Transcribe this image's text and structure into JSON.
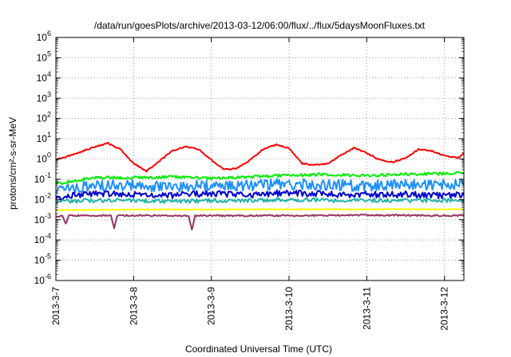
{
  "chart_data": {
    "type": "line",
    "title": "/data/run/goesPlots/archive/2013-03-12/06:00/flux/../flux/5daysMoonFluxes.txt",
    "xlabel": "Coordinated Universal Time (UTC)",
    "ylabel": "protons/cm²-s-sr-MeV",
    "yscale": "log",
    "ylim": [
      1e-06,
      1000000.0
    ],
    "xlim": [
      "2013-03-07T00:00",
      "2013-03-12T06:00"
    ],
    "x_ticks": [
      "2013-3-7",
      "2013-3-8",
      "2013-3-9",
      "2013-3-10",
      "2013-3-11",
      "2013-3-12"
    ],
    "y_ticks": [
      "10^-6",
      "10^-5",
      "10^-4",
      "10^-3",
      "10^-2",
      "10^-1",
      "10^0",
      "10^1",
      "10^2",
      "10^3",
      "10^4",
      "10^5",
      "10^6"
    ],
    "grid": true,
    "legend": "none",
    "series": [
      {
        "color": "#ff0000",
        "x": [
          "2013-03-07T00:00",
          "2013-03-07T06:00",
          "2013-03-07T12:00",
          "2013-03-07T16:00",
          "2013-03-07T20:00",
          "2013-03-08T00:00",
          "2013-03-08T04:00",
          "2013-03-08T08:00",
          "2013-03-08T12:00",
          "2013-03-08T16:00",
          "2013-03-08T20:00",
          "2013-03-09T00:00",
          "2013-03-09T04:00",
          "2013-03-09T08:00",
          "2013-03-09T12:00",
          "2013-03-09T16:00",
          "2013-03-09T20:00",
          "2013-03-10T00:00",
          "2013-03-10T04:00",
          "2013-03-10T08:00",
          "2013-03-10T12:00",
          "2013-03-10T16:00",
          "2013-03-10T20:00",
          "2013-03-11T00:00",
          "2013-03-11T04:00",
          "2013-03-11T08:00",
          "2013-03-11T12:00",
          "2013-03-11T16:00",
          "2013-03-11T20:00",
          "2013-03-12T00:00",
          "2013-03-12T04:00",
          "2013-03-12T06:00"
        ],
        "y": [
          0.9,
          1.8,
          4.0,
          6.0,
          3.0,
          0.6,
          0.25,
          0.8,
          2.5,
          4.0,
          3.0,
          0.9,
          0.3,
          0.35,
          0.9,
          3.0,
          5.0,
          3.5,
          0.6,
          0.5,
          0.6,
          1.5,
          3.5,
          2.0,
          0.9,
          0.7,
          1.1,
          3.0,
          2.5,
          1.5,
          1.1,
          1.8
        ]
      },
      {
        "color": "#00ee00",
        "x": [
          "2013-03-07T00:00",
          "2013-03-07T12:00",
          "2013-03-08T00:00",
          "2013-03-08T12:00",
          "2013-03-09T00:00",
          "2013-03-09T12:00",
          "2013-03-10T00:00",
          "2013-03-10T12:00",
          "2013-03-11T00:00",
          "2013-03-11T12:00",
          "2013-03-12T00:00",
          "2013-03-12T06:00"
        ],
        "y": [
          0.06,
          0.12,
          0.12,
          0.13,
          0.11,
          0.13,
          0.16,
          0.17,
          0.15,
          0.18,
          0.19,
          0.2
        ]
      },
      {
        "color": "#1e90ff",
        "x": [
          "2013-03-07T00:00",
          "2013-03-07T12:00",
          "2013-03-08T00:00",
          "2013-03-08T12:00",
          "2013-03-09T00:00",
          "2013-03-09T12:00",
          "2013-03-10T00:00",
          "2013-03-10T12:00",
          "2013-03-11T00:00",
          "2013-03-11T12:00",
          "2013-03-12T00:00",
          "2013-03-12T06:00"
        ],
        "y": [
          0.03,
          0.05,
          0.05,
          0.04,
          0.05,
          0.05,
          0.06,
          0.05,
          0.05,
          0.05,
          0.06,
          0.05
        ]
      },
      {
        "color": "#0000cc",
        "x": [
          "2013-03-07T00:00",
          "2013-03-07T12:00",
          "2013-03-08T00:00",
          "2013-03-08T12:00",
          "2013-03-09T00:00",
          "2013-03-09T12:00",
          "2013-03-10T00:00",
          "2013-03-10T12:00",
          "2013-03-11T00:00",
          "2013-03-11T12:00",
          "2013-03-12T00:00",
          "2013-03-12T06:00"
        ],
        "y": [
          0.012,
          0.02,
          0.018,
          0.016,
          0.02,
          0.017,
          0.022,
          0.018,
          0.017,
          0.018,
          0.016,
          0.016
        ]
      },
      {
        "color": "#20b2aa",
        "x": [
          "2013-03-07T00:00",
          "2013-03-07T12:00",
          "2013-03-08T00:00",
          "2013-03-08T12:00",
          "2013-03-09T00:00",
          "2013-03-09T12:00",
          "2013-03-10T00:00",
          "2013-03-10T12:00",
          "2013-03-11T00:00",
          "2013-03-11T12:00",
          "2013-03-12T00:00",
          "2013-03-12T06:00"
        ],
        "y": [
          0.008,
          0.009,
          0.009,
          0.008,
          0.009,
          0.009,
          0.01,
          0.009,
          0.009,
          0.009,
          0.009,
          0.009
        ]
      },
      {
        "color": "#ffff00",
        "x": [
          "2013-03-07T00:00",
          "2013-03-08T00:00",
          "2013-03-09T00:00",
          "2013-03-10T00:00",
          "2013-03-11T00:00",
          "2013-03-12T00:00",
          "2013-03-12T06:00"
        ],
        "y": [
          0.003,
          0.0032,
          0.0032,
          0.0033,
          0.0033,
          0.0033,
          0.0033
        ]
      },
      {
        "color": "#993366",
        "x": [
          "2013-03-07T00:00",
          "2013-03-07T02:00",
          "2013-03-07T03:00",
          "2013-03-07T04:00",
          "2013-03-07T12:00",
          "2013-03-07T17:00",
          "2013-03-07T18:00",
          "2013-03-07T19:00",
          "2013-03-08T00:00",
          "2013-03-08T12:00",
          "2013-03-08T17:00",
          "2013-03-08T18:00",
          "2013-03-08T19:00",
          "2013-03-09T00:00",
          "2013-03-10T00:00",
          "2013-03-11T00:00",
          "2013-03-12T00:00",
          "2013-03-12T06:00"
        ],
        "y": [
          0.0015,
          0.0015,
          0.0006,
          0.0016,
          0.0016,
          0.0016,
          0.0004,
          0.0016,
          0.0016,
          0.0016,
          0.0016,
          0.0003,
          0.0016,
          0.0016,
          0.0016,
          0.0017,
          0.0016,
          0.0016
        ]
      }
    ]
  }
}
